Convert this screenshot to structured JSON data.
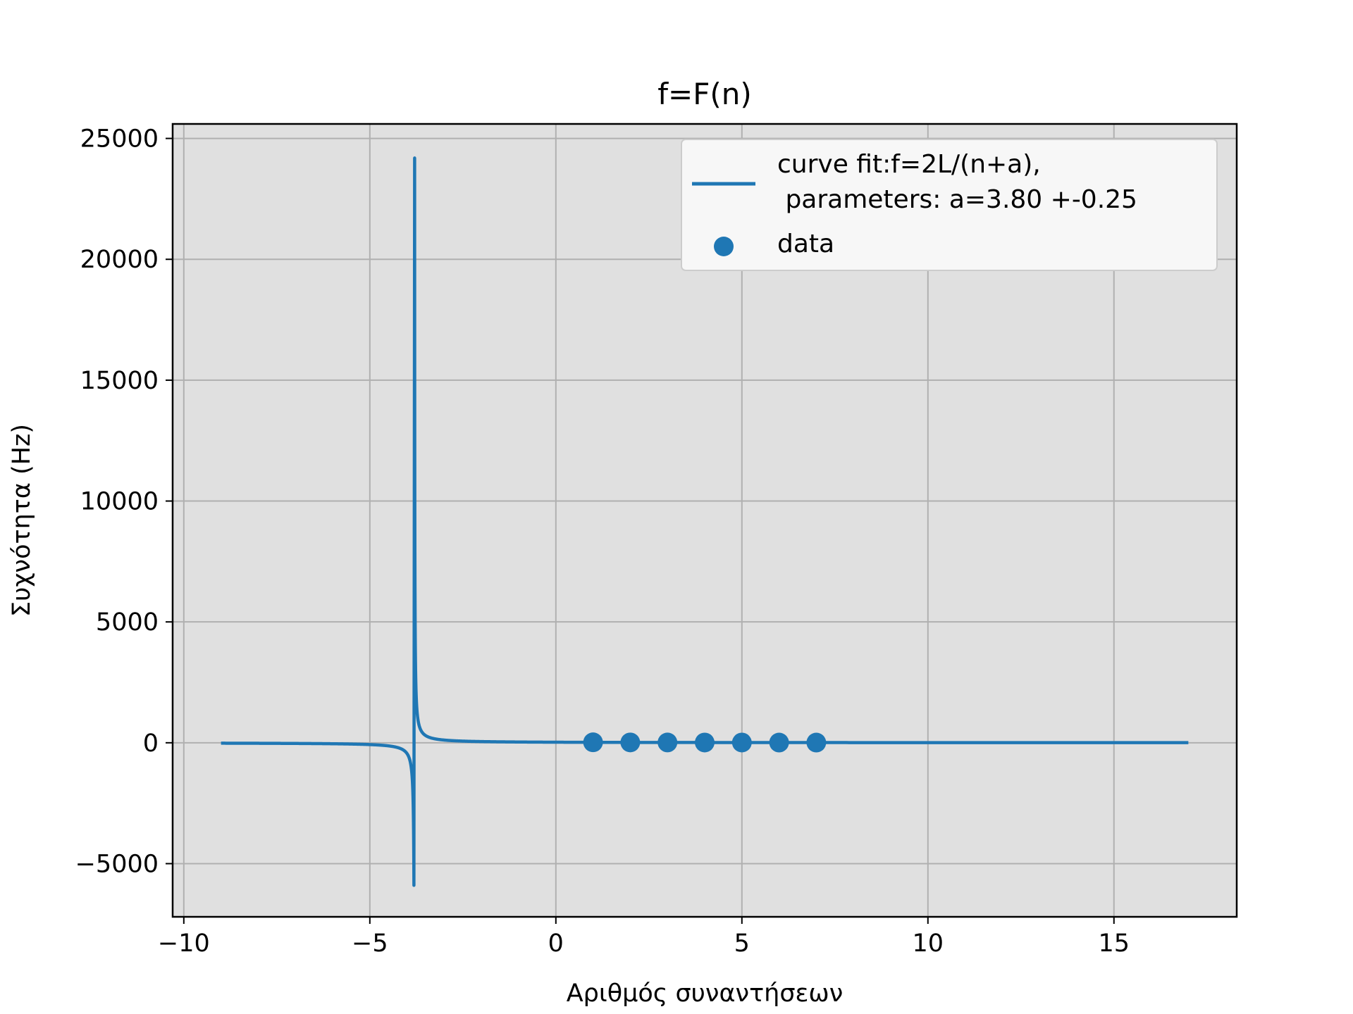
{
  "chart_data": {
    "type": "line",
    "title": "f=F(n)",
    "xlabel": "Αριθμός συναντήσεων",
    "ylabel": "Συχνότητα (Hz)",
    "xlim": [
      -10.3,
      18.3
    ],
    "ylim": [
      -7200,
      25600
    ],
    "xticks": [
      -10,
      -5,
      0,
      5,
      10,
      15
    ],
    "yticks": [
      -5000,
      0,
      5000,
      10000,
      15000,
      20000,
      25000
    ],
    "xtick_labels": [
      "−10",
      "−5",
      "0",
      "5",
      "10",
      "15"
    ],
    "ytick_labels": [
      "−5000",
      "0",
      "5000",
      "10000",
      "15000",
      "20000",
      "25000"
    ],
    "grid": true,
    "background": "#e0e0e0",
    "series_color": "#1f77b4",
    "legend_position": "top-right",
    "legend": [
      {
        "label_line1": "curve fit:f=2L/(n+a),",
        "label_line2": " parameters: a=3.80 +-0.25",
        "marker": "line"
      },
      {
        "label_line1": "data",
        "marker": "dot"
      }
    ],
    "fit": {
      "x_range": [
        -9,
        17
      ],
      "a": 3.8,
      "coefficient": 89.5
    },
    "series": [
      {
        "name": "data",
        "x": [
          1,
          2,
          3,
          4,
          5,
          6,
          7
        ],
        "y": [
          19,
          15,
          13,
          11,
          10,
          9,
          8
        ]
      }
    ]
  }
}
